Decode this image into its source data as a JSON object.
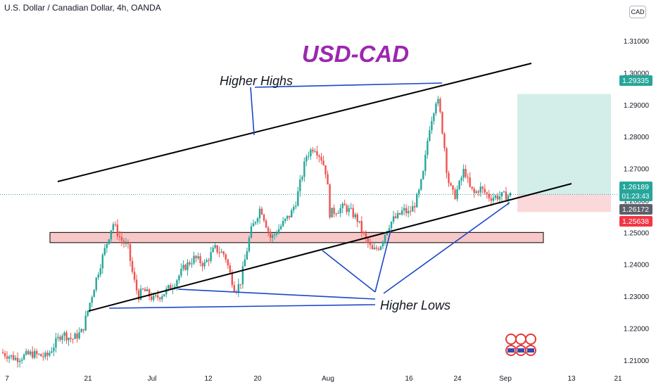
{
  "header": {
    "title": "U.S. Dollar / Canadian Dollar, 4h, OANDA",
    "currency": "CAD"
  },
  "chart_data": {
    "type": "candlestick",
    "title": "USD-CAD",
    "instrument": "U.S. Dollar / Canadian Dollar",
    "timeframe": "4h",
    "source": "OANDA",
    "ylim": [
      1.206,
      1.3175
    ],
    "y_ticks": [
      "1.31000",
      "1.30000",
      "1.29000",
      "1.28000",
      "1.27000",
      "1.26000",
      "1.25000",
      "1.24000",
      "1.23000",
      "1.22000",
      "1.21000"
    ],
    "x_ticks": [
      "7",
      "21",
      "Jul",
      "12",
      "20",
      "Aug",
      "16",
      "24",
      "Sep",
      "13",
      "21"
    ],
    "series": [
      {
        "name": "price",
        "points": [
          [
            1.2125,
            0
          ],
          [
            1.2105,
            0.03
          ],
          [
            1.212,
            0.06
          ],
          [
            1.211,
            0.09
          ],
          [
            1.2185,
            0.12
          ],
          [
            1.2165,
            0.14
          ],
          [
            1.219,
            0.16
          ],
          [
            1.237,
            0.19
          ],
          [
            1.253,
            0.22
          ],
          [
            1.248,
            0.235
          ],
          [
            1.245,
            0.25
          ],
          [
            1.236,
            0.26
          ],
          [
            1.23,
            0.27
          ],
          [
            1.232,
            0.28
          ],
          [
            1.229,
            0.3
          ],
          [
            1.231,
            0.32
          ],
          [
            1.234,
            0.34
          ],
          [
            1.239,
            0.36
          ],
          [
            1.242,
            0.38
          ],
          [
            1.24,
            0.4
          ],
          [
            1.245,
            0.42
          ],
          [
            1.243,
            0.44
          ],
          [
            1.237,
            0.45
          ],
          [
            1.232,
            0.46
          ],
          [
            1.234,
            0.47
          ],
          [
            1.25,
            0.49
          ],
          [
            1.258,
            0.51
          ],
          [
            1.248,
            0.53
          ],
          [
            1.252,
            0.55
          ],
          [
            1.256,
            0.57
          ],
          [
            1.26,
            0.58
          ],
          [
            1.274,
            0.6
          ],
          [
            1.277,
            0.615
          ],
          [
            1.273,
            0.63
          ],
          [
            1.268,
            0.64
          ],
          [
            1.256,
            0.645
          ],
          [
            1.257,
            0.66
          ],
          [
            1.258,
            0.675
          ],
          [
            1.256,
            0.69
          ],
          [
            1.254,
            0.7
          ],
          [
            1.248,
            0.715
          ],
          [
            1.244,
            0.73
          ],
          [
            1.246,
            0.745
          ],
          [
            1.252,
            0.76
          ],
          [
            1.254,
            0.77
          ],
          [
            1.255,
            0.78
          ],
          [
            1.257,
            0.79
          ],
          [
            1.256,
            0.8
          ],
          [
            1.258,
            0.81
          ],
          [
            1.262,
            0.82
          ],
          [
            1.269,
            0.83
          ],
          [
            1.282,
            0.84
          ],
          [
            1.292,
            0.855
          ],
          [
            1.29,
            0.86
          ],
          [
            1.278,
            0.87
          ],
          [
            1.27,
            0.875
          ],
          [
            1.265,
            0.88
          ],
          [
            1.261,
            0.89
          ],
          [
            1.265,
            0.9
          ],
          [
            1.27,
            0.91
          ],
          [
            1.264,
            0.92
          ],
          [
            1.262,
            0.93
          ],
          [
            1.264,
            0.94
          ],
          [
            1.261,
            0.96
          ],
          [
            1.2617,
            1.0
          ]
        ]
      }
    ],
    "annotations": {
      "title_text": "USD-CAD",
      "higher_highs": "Higher Highs",
      "higher_lows": "Higher Lows"
    },
    "current_price": "1.26189",
    "countdown": "01:23:43",
    "bid": "1.26172",
    "take_profit": "1.29335",
    "stop_loss": "1.25638",
    "support_zone": [
      1.2468,
      1.25
    ],
    "colors": {
      "up": "#26a69a",
      "down": "#ef5350",
      "title": "#9c27b0",
      "annot_line": "#1c47c7",
      "channel": "#000000",
      "zone": "#f8c7c7",
      "tp_box": "#d3eee9",
      "sl_box": "#fbd9da",
      "price_badge": "#26a69a",
      "bid_badge": "#5d606b",
      "sl_badge": "#f23645"
    }
  }
}
